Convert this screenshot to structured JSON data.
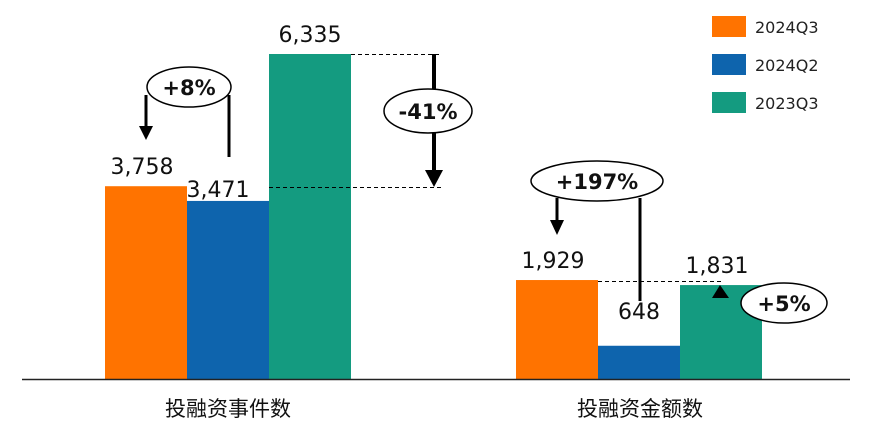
{
  "chart_data": {
    "type": "bar",
    "categories": [
      "投融资事件数",
      "投融资金额数"
    ],
    "series": [
      {
        "name": "2024Q3",
        "color": "#FF7300",
        "values": [
          3758,
          1929
        ],
        "labels": [
          "3,758",
          "1,929"
        ]
      },
      {
        "name": "2024Q2",
        "color": "#0E64AD",
        "values": [
          3471,
          648
        ],
        "labels": [
          "3,471",
          "648"
        ]
      },
      {
        "name": "2023Q3",
        "color": "#149B80",
        "values": [
          6335,
          1831
        ],
        "labels": [
          "6,335",
          "1,831"
        ]
      }
    ],
    "legend_position": "top-right",
    "grid": false,
    "ylim": [
      0,
      6335
    ],
    "annotations": {
      "events_qoq": "+8%",
      "events_yoy": "-41%",
      "amount_qoq": "+197%",
      "amount_yoy": "+5%"
    }
  }
}
